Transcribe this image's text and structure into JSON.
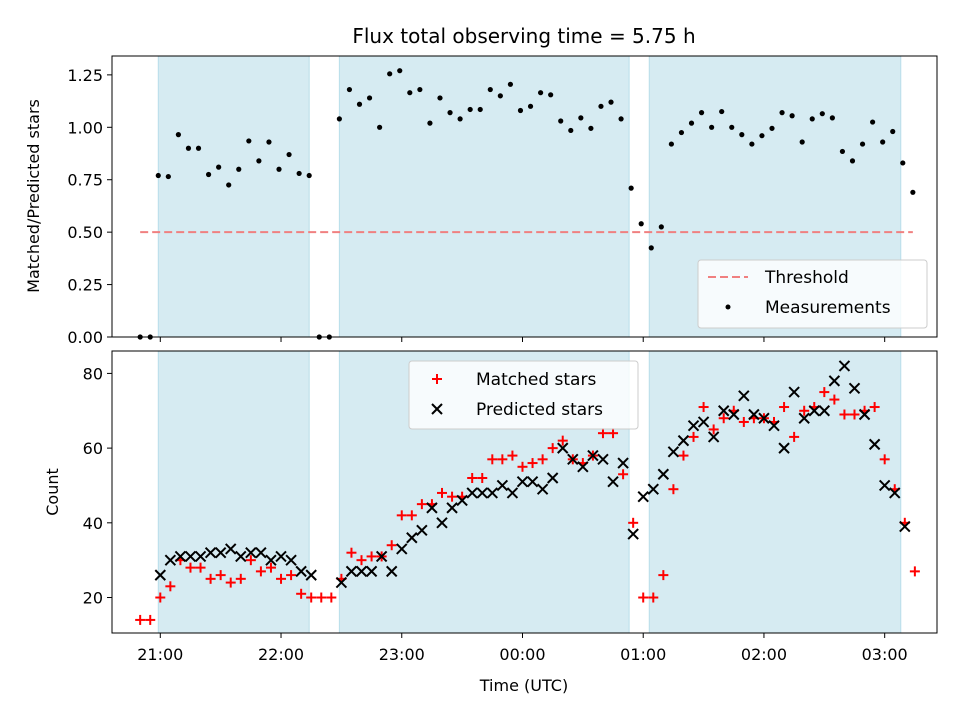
{
  "chart_data": [
    {
      "type": "scatter",
      "title": "Flux total observing time = 5.75 h",
      "xlabel": "",
      "ylabel": "Matched/Predicted stars",
      "xlim": [
        "20:35",
        "03:25"
      ],
      "ylim": [
        0,
        1.34
      ],
      "yticks": [
        0,
        0.25,
        0.5,
        0.75,
        1.0,
        1.25
      ],
      "ytick_labels": [
        "0.00",
        "0.25",
        "0.50",
        "0.75",
        "1.00",
        "1.25"
      ],
      "threshold": {
        "value": 0.5,
        "from": "20:49",
        "to": "03:13",
        "color": "#f08080"
      },
      "observing_windows": [
        [
          "20:58",
          "22:13"
        ],
        [
          "22:28",
          "00:52"
        ],
        [
          "01:02",
          "03:07"
        ]
      ],
      "legend": {
        "placement": "lower right",
        "entries": [
          "Threshold",
          "Measurements"
        ]
      },
      "series": [
        {
          "name": "Measurements",
          "color": "#000000",
          "points": [
            [
              "20:49",
              0.0
            ],
            [
              "20:54",
              0.0
            ],
            [
              "20:58",
              0.77
            ],
            [
              "21:03",
              0.765
            ],
            [
              "21:08",
              0.965
            ],
            [
              "21:13",
              0.9
            ],
            [
              "21:18",
              0.9
            ],
            [
              "21:23",
              0.775
            ],
            [
              "21:28",
              0.81
            ],
            [
              "21:33",
              0.725
            ],
            [
              "21:38",
              0.8
            ],
            [
              "21:43",
              0.935
            ],
            [
              "21:48",
              0.84
            ],
            [
              "21:53",
              0.93
            ],
            [
              "21:58",
              0.8
            ],
            [
              "22:03",
              0.87
            ],
            [
              "22:08",
              0.78
            ],
            [
              "22:13",
              0.77
            ],
            [
              "22:18",
              0.0
            ],
            [
              "22:23",
              0.0
            ],
            [
              "22:28",
              1.04
            ],
            [
              "22:33",
              1.18
            ],
            [
              "22:38",
              1.11
            ],
            [
              "22:43",
              1.14
            ],
            [
              "22:48",
              1.0
            ],
            [
              "22:53",
              1.255
            ],
            [
              "22:58",
              1.27
            ],
            [
              "23:03",
              1.165
            ],
            [
              "23:08",
              1.18
            ],
            [
              "23:13",
              1.02
            ],
            [
              "23:18",
              1.14
            ],
            [
              "23:23",
              1.07
            ],
            [
              "23:28",
              1.04
            ],
            [
              "23:33",
              1.085
            ],
            [
              "23:38",
              1.085
            ],
            [
              "23:43",
              1.18
            ],
            [
              "23:48",
              1.15
            ],
            [
              "23:53",
              1.205
            ],
            [
              "23:58",
              1.08
            ],
            [
              "00:03",
              1.1
            ],
            [
              "00:08",
              1.165
            ],
            [
              "00:13",
              1.155
            ],
            [
              "00:18",
              1.03
            ],
            [
              "00:23",
              0.985
            ],
            [
              "00:28",
              1.045
            ],
            [
              "00:33",
              0.995
            ],
            [
              "00:38",
              1.1
            ],
            [
              "00:43",
              1.12
            ],
            [
              "00:48",
              1.04
            ],
            [
              "00:53",
              0.71
            ],
            [
              "00:58",
              0.54
            ],
            [
              "01:03",
              0.425
            ],
            [
              "01:08",
              0.525
            ],
            [
              "01:13",
              0.92
            ],
            [
              "01:18",
              0.975
            ],
            [
              "01:23",
              1.02
            ],
            [
              "01:28",
              1.07
            ],
            [
              "01:33",
              1.0
            ],
            [
              "01:38",
              1.075
            ],
            [
              "01:43",
              1.0
            ],
            [
              "01:48",
              0.965
            ],
            [
              "01:53",
              0.92
            ],
            [
              "01:58",
              0.96
            ],
            [
              "02:03",
              0.995
            ],
            [
              "02:08",
              1.07
            ],
            [
              "02:13",
              1.055
            ],
            [
              "02:18",
              0.93
            ],
            [
              "02:23",
              1.04
            ],
            [
              "02:28",
              1.065
            ],
            [
              "02:33",
              1.045
            ],
            [
              "02:38",
              0.885
            ],
            [
              "02:43",
              0.84
            ],
            [
              "02:48",
              0.92
            ],
            [
              "02:53",
              1.025
            ],
            [
              "02:58",
              0.93
            ],
            [
              "03:03",
              0.98
            ],
            [
              "03:08",
              0.83
            ],
            [
              "03:13",
              0.69
            ]
          ]
        }
      ]
    },
    {
      "type": "scatter",
      "title": "",
      "xlabel": "Time (UTC)",
      "ylabel": "Count",
      "xlim": [
        "20:35",
        "03:25"
      ],
      "ylim": [
        10.5,
        86
      ],
      "xticks": [
        "20:59",
        "21:59",
        "22:59",
        "23:59",
        "00:59",
        "01:59",
        "02:59"
      ],
      "xtick_labels": [
        "21:00",
        "22:00",
        "23:00",
        "00:00",
        "01:00",
        "02:00",
        "03:00"
      ],
      "yticks": [
        20,
        40,
        60,
        80
      ],
      "ytick_labels": [
        "20",
        "40",
        "60",
        "80"
      ],
      "observing_windows": [
        [
          "20:58",
          "22:13"
        ],
        [
          "22:28",
          "00:52"
        ],
        [
          "01:02",
          "03:07"
        ]
      ],
      "legend": {
        "placement": "upper center",
        "entries": [
          "Matched stars",
          "Predicted stars"
        ]
      },
      "series": [
        {
          "name": "Matched stars",
          "marker": "+",
          "color": "#ff0000",
          "points": [
            [
              "20:49",
              14
            ],
            [
              "20:54",
              14
            ],
            [
              "20:59",
              20
            ],
            [
              "21:04",
              23
            ],
            [
              "21:09",
              30
            ],
            [
              "21:14",
              28
            ],
            [
              "21:19",
              28
            ],
            [
              "21:24",
              25
            ],
            [
              "21:29",
              26
            ],
            [
              "21:34",
              24
            ],
            [
              "21:39",
              25
            ],
            [
              "21:44",
              30
            ],
            [
              "21:49",
              27
            ],
            [
              "21:54",
              28
            ],
            [
              "21:59",
              25
            ],
            [
              "22:04",
              26
            ],
            [
              "22:09",
              21
            ],
            [
              "22:14",
              20
            ],
            [
              "22:19",
              20
            ],
            [
              "22:24",
              20
            ],
            [
              "22:29",
              25
            ],
            [
              "22:34",
              32
            ],
            [
              "22:39",
              30
            ],
            [
              "22:44",
              31
            ],
            [
              "22:49",
              31
            ],
            [
              "22:54",
              34
            ],
            [
              "22:59",
              42
            ],
            [
              "23:04",
              42
            ],
            [
              "23:09",
              45
            ],
            [
              "23:14",
              45
            ],
            [
              "23:19",
              48
            ],
            [
              "23:24",
              47
            ],
            [
              "23:29",
              47
            ],
            [
              "23:34",
              52
            ],
            [
              "23:39",
              52
            ],
            [
              "23:44",
              57
            ],
            [
              "23:49",
              57
            ],
            [
              "23:54",
              58
            ],
            [
              "23:59",
              55
            ],
            [
              "00:04",
              56
            ],
            [
              "00:09",
              57
            ],
            [
              "00:14",
              60
            ],
            [
              "00:19",
              62
            ],
            [
              "00:24",
              57
            ],
            [
              "00:29",
              56
            ],
            [
              "00:34",
              58
            ],
            [
              "00:39",
              64
            ],
            [
              "00:44",
              64
            ],
            [
              "00:49",
              53
            ],
            [
              "00:54",
              40
            ],
            [
              "00:59",
              20
            ],
            [
              "01:04",
              20
            ],
            [
              "01:09",
              26
            ],
            [
              "01:14",
              49
            ],
            [
              "01:19",
              58
            ],
            [
              "01:24",
              63
            ],
            [
              "01:29",
              71
            ],
            [
              "01:34",
              65
            ],
            [
              "01:39",
              68
            ],
            [
              "01:44",
              70
            ],
            [
              "01:49",
              67
            ],
            [
              "01:54",
              68
            ],
            [
              "01:59",
              68
            ],
            [
              "02:04",
              67
            ],
            [
              "02:09",
              71
            ],
            [
              "02:14",
              63
            ],
            [
              "02:19",
              70
            ],
            [
              "02:24",
              71
            ],
            [
              "02:29",
              75
            ],
            [
              "02:34",
              73
            ],
            [
              "02:39",
              69
            ],
            [
              "02:44",
              69
            ],
            [
              "02:49",
              70
            ],
            [
              "02:54",
              71
            ],
            [
              "02:59",
              57
            ],
            [
              "03:04",
              49
            ],
            [
              "03:09",
              40
            ],
            [
              "03:14",
              27
            ]
          ]
        },
        {
          "name": "Predicted stars",
          "marker": "x",
          "color": "#000000",
          "points": [
            [
              "20:59",
              26
            ],
            [
              "21:04",
              30
            ],
            [
              "21:09",
              31
            ],
            [
              "21:14",
              31
            ],
            [
              "21:19",
              31
            ],
            [
              "21:24",
              32
            ],
            [
              "21:29",
              32
            ],
            [
              "21:34",
              33
            ],
            [
              "21:39",
              31
            ],
            [
              "21:44",
              32
            ],
            [
              "21:49",
              32
            ],
            [
              "21:54",
              30
            ],
            [
              "21:59",
              31
            ],
            [
              "22:04",
              30
            ],
            [
              "22:09",
              27
            ],
            [
              "22:14",
              26
            ],
            [
              "22:29",
              24
            ],
            [
              "22:34",
              27
            ],
            [
              "22:39",
              27
            ],
            [
              "22:44",
              27
            ],
            [
              "22:49",
              31
            ],
            [
              "22:54",
              27
            ],
            [
              "22:59",
              33
            ],
            [
              "23:04",
              36
            ],
            [
              "23:09",
              38
            ],
            [
              "23:14",
              44
            ],
            [
              "23:19",
              40
            ],
            [
              "23:24",
              44
            ],
            [
              "23:29",
              46
            ],
            [
              "23:34",
              48
            ],
            [
              "23:39",
              48
            ],
            [
              "23:44",
              48
            ],
            [
              "23:49",
              50
            ],
            [
              "23:54",
              48
            ],
            [
              "23:59",
              51
            ],
            [
              "00:04",
              51
            ],
            [
              "00:09",
              49
            ],
            [
              "00:14",
              52
            ],
            [
              "00:19",
              60
            ],
            [
              "00:24",
              57
            ],
            [
              "00:29",
              55
            ],
            [
              "00:34",
              58
            ],
            [
              "00:39",
              57
            ],
            [
              "00:44",
              51
            ],
            [
              "00:49",
              56
            ],
            [
              "00:54",
              37
            ],
            [
              "00:59",
              47
            ],
            [
              "01:04",
              49
            ],
            [
              "01:09",
              53
            ],
            [
              "01:14",
              59
            ],
            [
              "01:19",
              62
            ],
            [
              "01:24",
              66
            ],
            [
              "01:29",
              67
            ],
            [
              "01:34",
              63
            ],
            [
              "01:39",
              70
            ],
            [
              "01:44",
              69
            ],
            [
              "01:49",
              74
            ],
            [
              "01:54",
              69
            ],
            [
              "01:59",
              68
            ],
            [
              "02:04",
              66
            ],
            [
              "02:09",
              60
            ],
            [
              "02:14",
              75
            ],
            [
              "02:19",
              68
            ],
            [
              "02:24",
              70
            ],
            [
              "02:29",
              70
            ],
            [
              "02:34",
              78
            ],
            [
              "02:39",
              82
            ],
            [
              "02:44",
              76
            ],
            [
              "02:49",
              69
            ],
            [
              "02:54",
              61
            ],
            [
              "02:59",
              50
            ],
            [
              "03:04",
              48
            ],
            [
              "03:09",
              39
            ]
          ]
        }
      ]
    }
  ]
}
